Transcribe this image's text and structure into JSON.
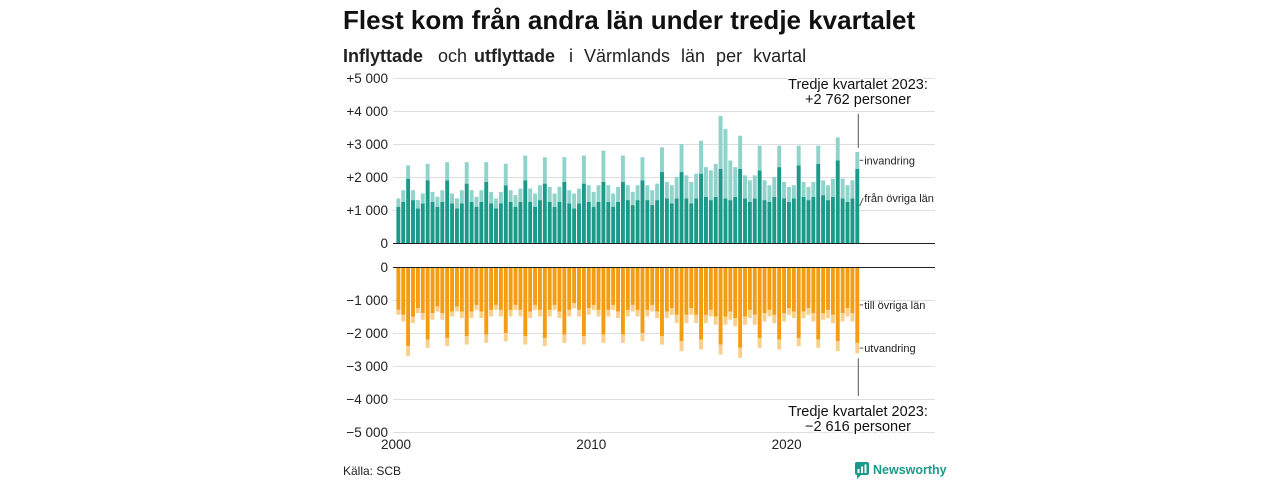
{
  "chart_data": {
    "type": "bar",
    "stacked": true,
    "title": "Flest kom från andra län under tredje kvartalet",
    "subtitle": {
      "inflow": "Inflyttade",
      "conjunction": "och",
      "outflow": "utflyttade",
      "rest": "i Värmlands län per kvartal"
    },
    "grid": true,
    "xlim": [
      2000,
      2027.6
    ],
    "xticks": [
      {
        "value": 2000,
        "label": "2000"
      },
      {
        "value": 2010,
        "label": "2010"
      },
      {
        "value": 2020,
        "label": "2020"
      }
    ],
    "x": [
      2000,
      2000.25,
      2000.5,
      2000.75,
      2001,
      2001.25,
      2001.5,
      2001.75,
      2002,
      2002.25,
      2002.5,
      2002.75,
      2003,
      2003.25,
      2003.5,
      2003.75,
      2004,
      2004.25,
      2004.5,
      2004.75,
      2005,
      2005.25,
      2005.5,
      2005.75,
      2006,
      2006.25,
      2006.5,
      2006.75,
      2007,
      2007.25,
      2007.5,
      2007.75,
      2008,
      2008.25,
      2008.5,
      2008.75,
      2009,
      2009.25,
      2009.5,
      2009.75,
      2010,
      2010.25,
      2010.5,
      2010.75,
      2011,
      2011.25,
      2011.5,
      2011.75,
      2012,
      2012.25,
      2012.5,
      2012.75,
      2013,
      2013.25,
      2013.5,
      2013.75,
      2014,
      2014.25,
      2014.5,
      2014.75,
      2015,
      2015.25,
      2015.5,
      2015.75,
      2016,
      2016.25,
      2016.5,
      2016.75,
      2017,
      2017.25,
      2017.5,
      2017.75,
      2018,
      2018.25,
      2018.5,
      2018.75,
      2019,
      2019.25,
      2019.5,
      2019.75,
      2020,
      2020.25,
      2020.5,
      2020.75,
      2021,
      2021.25,
      2021.5,
      2021.75,
      2022,
      2022.25,
      2022.5,
      2022.75,
      2023,
      2023.25,
      2023.5
    ],
    "panels": [
      {
        "ylim": [
          0,
          5000
        ],
        "yticks": [
          {
            "value": 0,
            "label": "0"
          },
          {
            "value": 1000,
            "label": "+1 000"
          },
          {
            "value": 2000,
            "label": "+2 000"
          },
          {
            "value": 3000,
            "label": "+3 000"
          },
          {
            "value": 4000,
            "label": "+4 000"
          },
          {
            "value": 5000,
            "label": "+5 000"
          }
        ],
        "series": [
          {
            "name": "från övriga län",
            "color": "#1b9a8a",
            "values": [
              1100,
              1250,
              1950,
              1300,
              1050,
              1200,
              1900,
              1250,
              1100,
              1250,
              1900,
              1200,
              1050,
              1200,
              1800,
              1250,
              1100,
              1250,
              1850,
              1200,
              1050,
              1200,
              1750,
              1250,
              1100,
              1250,
              1900,
              1250,
              1100,
              1300,
              1800,
              1250,
              1100,
              1250,
              1850,
              1200,
              1050,
              1200,
              1800,
              1250,
              1100,
              1250,
              1850,
              1250,
              1100,
              1250,
              1850,
              1300,
              1150,
              1300,
              1900,
              1300,
              1150,
              1300,
              2150,
              1350,
              1200,
              1350,
              2150,
              1350,
              1200,
              1350,
              2100,
              1400,
              1300,
              1400,
              2250,
              1350,
              1300,
              1400,
              2250,
              1350,
              1250,
              1350,
              2200,
              1300,
              1250,
              1400,
              2300,
              1350,
              1250,
              1350,
              2350,
              1400,
              1300,
              1400,
              2400,
              1450,
              1300,
              1400,
              2500,
              1350,
              1250,
              1350,
              2250
            ]
          },
          {
            "name": "invandring",
            "color": "#8fd3ca",
            "values": [
              250,
              350,
              400,
              300,
              250,
              300,
              500,
              300,
              300,
              350,
              550,
              300,
              300,
              400,
              650,
              350,
              300,
              350,
              600,
              350,
              300,
              350,
              650,
              350,
              350,
              400,
              750,
              400,
              400,
              450,
              800,
              450,
              400,
              450,
              750,
              400,
              450,
              450,
              850,
              500,
              450,
              500,
              950,
              500,
              400,
              450,
              800,
              450,
              400,
              450,
              700,
              450,
              450,
              500,
              750,
              500,
              550,
              650,
              850,
              700,
              650,
              750,
              1000,
              900,
              900,
              1000,
              1600,
              2100,
              1200,
              900,
              1000,
              700,
              650,
              700,
              750,
              600,
              500,
              600,
              650,
              500,
              450,
              400,
              600,
              450,
              400,
              450,
              550,
              450,
              450,
              550,
              700,
              600,
              500,
              550,
              512
            ]
          }
        ],
        "annotation": {
          "line1": "Tredje kvartalet 2023:",
          "line2": "+2 762 personer"
        }
      },
      {
        "ylim": [
          -5000,
          0
        ],
        "yticks": [
          {
            "value": 0,
            "label": "0"
          },
          {
            "value": -1000,
            "label": "−1 000"
          },
          {
            "value": -2000,
            "label": "−2 000"
          },
          {
            "value": -3000,
            "label": "−3 000"
          },
          {
            "value": -4000,
            "label": "−4 000"
          },
          {
            "value": -5000,
            "label": "−5 000"
          }
        ],
        "series": [
          {
            "name": "till övriga län",
            "color": "#f59d12",
            "values": [
              -1300,
              -1450,
              -2400,
              -1500,
              -1250,
              -1400,
              -2200,
              -1400,
              -1200,
              -1400,
              -2150,
              -1350,
              -1200,
              -1350,
              -2100,
              -1350,
              -1150,
              -1350,
              -2050,
              -1300,
              -1150,
              -1300,
              -2000,
              -1300,
              -1150,
              -1300,
              -2100,
              -1350,
              -1150,
              -1300,
              -2150,
              -1300,
              -1150,
              -1350,
              -2050,
              -1300,
              -1100,
              -1300,
              -2100,
              -1250,
              -1150,
              -1300,
              -2050,
              -1300,
              -1150,
              -1350,
              -2050,
              -1300,
              -1150,
              -1300,
              -2000,
              -1300,
              -1150,
              -1350,
              -2100,
              -1350,
              -1250,
              -1450,
              -2250,
              -1450,
              -1250,
              -1450,
              -2200,
              -1450,
              -1300,
              -1500,
              -2350,
              -1500,
              -1350,
              -1550,
              -2450,
              -1500,
              -1300,
              -1450,
              -2150,
              -1400,
              -1300,
              -1450,
              -2200,
              -1400,
              -1250,
              -1350,
              -2150,
              -1350,
              -1250,
              -1400,
              -2200,
              -1400,
              -1300,
              -1450,
              -2250,
              -1400,
              -1250,
              -1400,
              -2300
            ]
          },
          {
            "name": "utvandring",
            "color": "#f9d08b",
            "values": [
              -150,
              -200,
              -300,
              -200,
              -150,
              -200,
              -250,
              -200,
              -150,
              -200,
              -250,
              -150,
              -150,
              -200,
              -250,
              -200,
              -150,
              -200,
              -250,
              -200,
              -150,
              -200,
              -250,
              -200,
              -150,
              -200,
              -250,
              -200,
              -150,
              -200,
              -250,
              -200,
              -150,
              -200,
              -250,
              -200,
              -150,
              -200,
              -250,
              -200,
              -150,
              -200,
              -250,
              -200,
              -150,
              -200,
              -250,
              -200,
              -200,
              -200,
              -250,
              -200,
              -200,
              -200,
              -250,
              -200,
              -200,
              -250,
              -300,
              -250,
              -200,
              -250,
              -300,
              -250,
              -200,
              -250,
              -300,
              -250,
              -250,
              -250,
              -300,
              -250,
              -250,
              -300,
              -300,
              -250,
              -200,
              -250,
              -300,
              -250,
              -200,
              -200,
              -250,
              -200,
              -200,
              -250,
              -250,
              -200,
              -250,
              -250,
              -300,
              -250,
              -250,
              -250,
              -316
            ]
          }
        ],
        "annotation": {
          "line1": "Tredje kvartalet 2023:",
          "line2": "−2 616 personer"
        }
      }
    ],
    "source": "Källa: SCB"
  },
  "colors": {
    "inflow_text": "#1a9585",
    "outflow_text": "#f39a12"
  },
  "branding": {
    "name": "Newsworthy",
    "color": "#1b9a8a",
    "icon": "bar-chart-icon"
  }
}
